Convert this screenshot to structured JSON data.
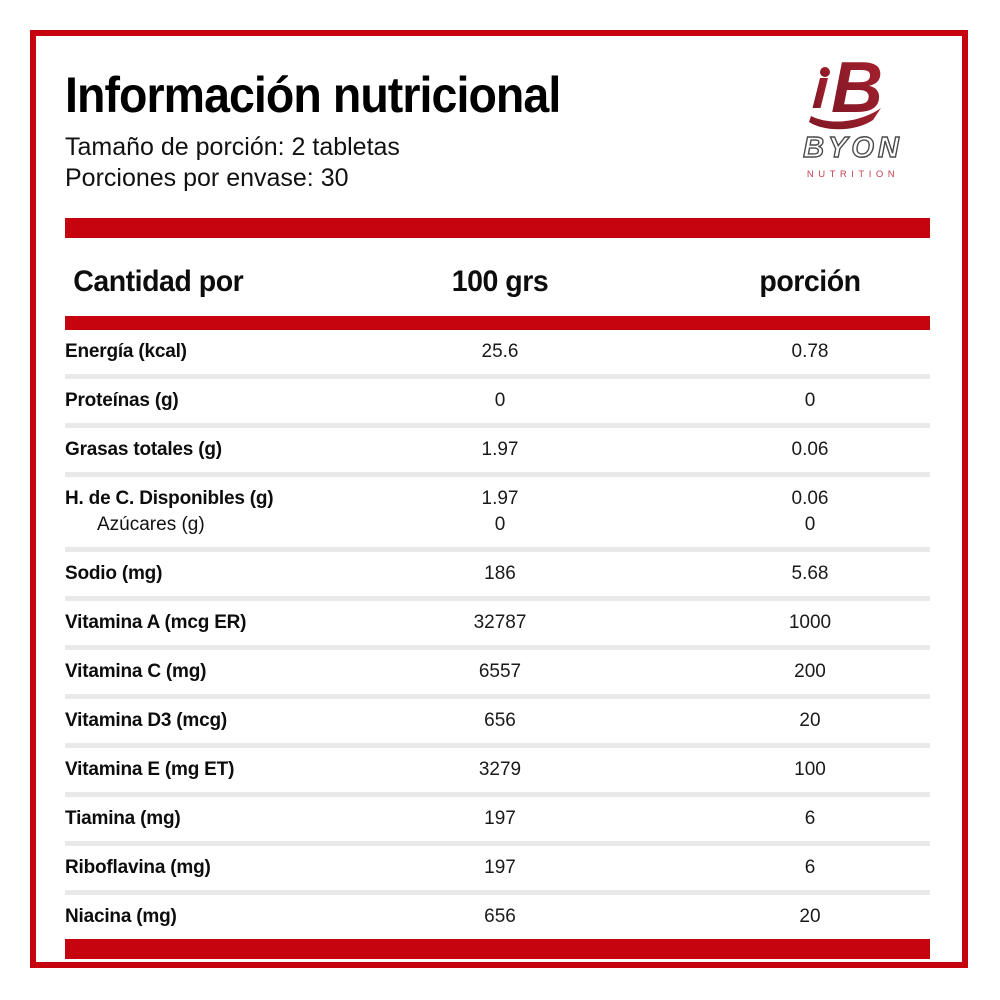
{
  "header": {
    "title": "Información nutricional",
    "serving_size": "Tamaño de porción: 2 tabletas",
    "servings_per_container": "Porciones por envase: 30"
  },
  "logo": {
    "brand": "BYON",
    "subtext": "NUTRITION"
  },
  "table": {
    "header": {
      "col1": "Cantidad por",
      "col2": "100 grs",
      "col3": "porción"
    },
    "rows": [
      {
        "label": "Energía (kcal)",
        "per100": "25.6",
        "portion": "0.78"
      },
      {
        "label": "Proteínas (g)",
        "per100": "0",
        "portion": "0"
      },
      {
        "label": "Grasas totales (g)",
        "per100": "1.97",
        "portion": "0.06"
      },
      {
        "label": "H. de C. Disponibles (g)",
        "per100": "1.97",
        "portion": "0.06",
        "sub": {
          "label": "Azúcares (g)",
          "per100": "0",
          "portion": "0"
        }
      },
      {
        "label": "Sodio (mg)",
        "per100": "186",
        "portion": "5.68"
      },
      {
        "label": "Vitamina A (mcg ER)",
        "per100": "32787",
        "portion": "1000"
      },
      {
        "label": "Vitamina C (mg)",
        "per100": "6557",
        "portion": "200"
      },
      {
        "label": "Vitamina D3 (mcg)",
        "per100": "656",
        "portion": "20"
      },
      {
        "label": "Vitamina E (mg ET)",
        "per100": "3279",
        "portion": "100"
      },
      {
        "label": "Tiamina (mg)",
        "per100": "197",
        "portion": "6"
      },
      {
        "label": "Riboflavina (mg)",
        "per100": "197",
        "portion": "6"
      },
      {
        "label": "Niacina (mg)",
        "per100": "656",
        "portion": "20"
      }
    ]
  },
  "colors": {
    "accent_red": "#c5040f",
    "separator_gray": "#e9e9e9",
    "logo_mark_dark_red": "#7d1724",
    "logo_mark_light_red": "#a8212f",
    "logo_subtext_red": "#c24350"
  }
}
